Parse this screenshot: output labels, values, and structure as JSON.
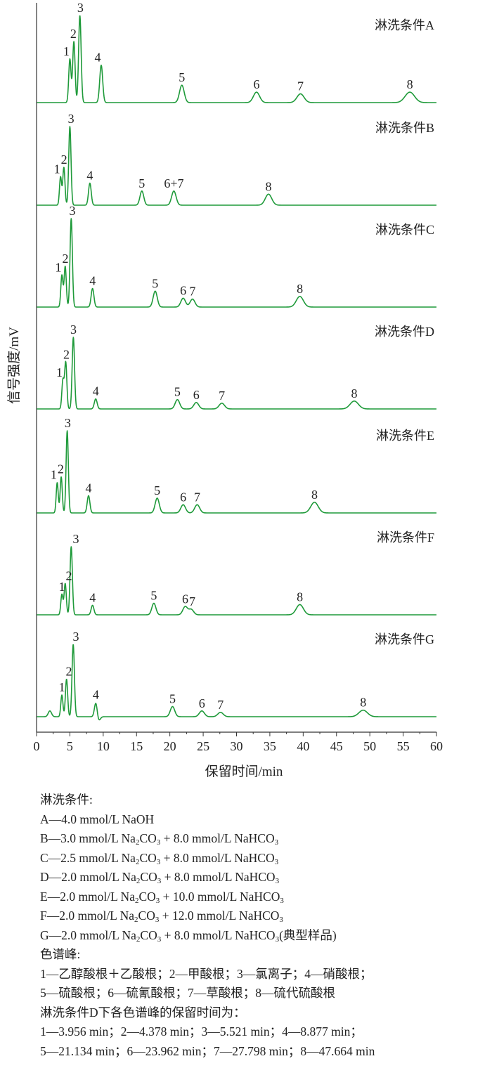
{
  "chart_data": {
    "type": "line",
    "xlabel": "保留时间/min",
    "ylabel": "信号强度/mV",
    "xlim": [
      0,
      60
    ],
    "xticks": [
      0,
      5,
      10,
      15,
      20,
      25,
      30,
      35,
      40,
      45,
      50,
      55,
      60
    ],
    "grid": false,
    "series": [
      {
        "name": "淋洗条件A",
        "peaks": [
          {
            "label": "1",
            "t": 5.0,
            "h": 0.5
          },
          {
            "label": "2",
            "t": 5.6,
            "h": 0.7
          },
          {
            "label": "3",
            "t": 6.5,
            "h": 1.0
          },
          {
            "label": "4",
            "t": 9.7,
            "h": 0.43
          },
          {
            "label": "5",
            "t": 21.8,
            "h": 0.2
          },
          {
            "label": "6",
            "t": 33.0,
            "h": 0.12
          },
          {
            "label": "7",
            "t": 39.6,
            "h": 0.1
          },
          {
            "label": "8",
            "t": 56.0,
            "h": 0.12
          }
        ]
      },
      {
        "name": "淋洗条件B",
        "peaks": [
          {
            "label": "1",
            "t": 3.6,
            "h": 0.36
          },
          {
            "label": "2",
            "t": 4.1,
            "h": 0.48
          },
          {
            "label": "3",
            "t": 5.0,
            "h": 1.0
          },
          {
            "label": "4",
            "t": 8.0,
            "h": 0.28
          },
          {
            "label": "5",
            "t": 15.8,
            "h": 0.18
          },
          {
            "label": "6+7",
            "t": 20.6,
            "h": 0.18
          },
          {
            "label": "8",
            "t": 34.8,
            "h": 0.14
          }
        ]
      },
      {
        "name": "淋洗条件C",
        "peaks": [
          {
            "label": "1",
            "t": 3.8,
            "h": 0.36
          },
          {
            "label": "2",
            "t": 4.3,
            "h": 0.46
          },
          {
            "label": "3",
            "t": 5.2,
            "h": 1.0
          },
          {
            "label": "4",
            "t": 8.4,
            "h": 0.21
          },
          {
            "label": "5",
            "t": 17.8,
            "h": 0.18
          },
          {
            "label": "6",
            "t": 22.0,
            "h": 0.1
          },
          {
            "label": "7",
            "t": 23.4,
            "h": 0.09
          },
          {
            "label": "8",
            "t": 39.5,
            "h": 0.12
          }
        ]
      },
      {
        "name": "淋洗条件D",
        "peaks": [
          {
            "label": "1",
            "t": 3.956,
            "h": 0.4
          },
          {
            "label": "2",
            "t": 4.378,
            "h": 0.65
          },
          {
            "label": "3",
            "t": 5.521,
            "h": 1.0
          },
          {
            "label": "4",
            "t": 8.877,
            "h": 0.14
          },
          {
            "label": "5",
            "t": 21.134,
            "h": 0.13
          },
          {
            "label": "6",
            "t": 23.962,
            "h": 0.09
          },
          {
            "label": "7",
            "t": 27.798,
            "h": 0.08
          },
          {
            "label": "8",
            "t": 47.664,
            "h": 0.11
          }
        ]
      },
      {
        "name": "淋洗条件E",
        "peaks": [
          {
            "label": "1",
            "t": 3.1,
            "h": 0.37
          },
          {
            "label": "2",
            "t": 3.7,
            "h": 0.44
          },
          {
            "label": "3",
            "t": 4.6,
            "h": 1.0
          },
          {
            "label": "4",
            "t": 7.8,
            "h": 0.21
          },
          {
            "label": "5",
            "t": 18.1,
            "h": 0.18
          },
          {
            "label": "6",
            "t": 22.0,
            "h": 0.1
          },
          {
            "label": "7",
            "t": 24.1,
            "h": 0.1
          },
          {
            "label": "8",
            "t": 41.7,
            "h": 0.13
          }
        ]
      },
      {
        "name": "淋洗条件F",
        "peaks": [
          {
            "label": "1",
            "t": 3.8,
            "h": 0.3
          },
          {
            "label": "2",
            "t": 4.3,
            "h": 0.46
          },
          {
            "label": "3",
            "t": 5.2,
            "h": 1.0
          },
          {
            "label": "4",
            "t": 8.4,
            "h": 0.14
          },
          {
            "label": "5",
            "t": 17.6,
            "h": 0.17
          },
          {
            "label": "6",
            "t": 22.3,
            "h": 0.12
          },
          {
            "label": "7",
            "t": 23.2,
            "h": 0.08
          },
          {
            "label": "8",
            "t": 39.5,
            "h": 0.15
          }
        ]
      },
      {
        "name": "淋洗条件G",
        "baseline_dip": [
          {
            "t": 2.0,
            "h": 0.08
          },
          {
            "t": 9.3,
            "h": -0.06
          }
        ],
        "peaks": [
          {
            "label": "1",
            "t": 3.8,
            "h": 0.3
          },
          {
            "label": "2",
            "t": 4.5,
            "h": 0.52
          },
          {
            "label": "3",
            "t": 5.5,
            "h": 1.0
          },
          {
            "label": "4",
            "t": 8.9,
            "h": 0.2
          },
          {
            "label": "5",
            "t": 20.4,
            "h": 0.14
          },
          {
            "label": "6",
            "t": 24.8,
            "h": 0.08
          },
          {
            "label": "7",
            "t": 27.6,
            "h": 0.06
          },
          {
            "label": "8",
            "t": 49.0,
            "h": 0.09
          }
        ]
      }
    ]
  },
  "legend": {
    "title": "淋洗条件:",
    "conditions": [
      {
        "id": "A",
        "text": "A—4.0 mmol/L NaOH"
      },
      {
        "id": "B",
        "text": "B—3.0 mmol/L Na₂CO₃ + 8.0 mmol/L NaHCO₃"
      },
      {
        "id": "C",
        "text": "C—2.5 mmol/L Na₂CO₃ + 8.0 mmol/L NaHCO₃"
      },
      {
        "id": "D",
        "text": "D—2.0 mmol/L Na₂CO₃ + 8.0 mmol/L NaHCO₃"
      },
      {
        "id": "E",
        "text": "E—2.0 mmol/L Na₂CO₃ + 10.0 mmol/L NaHCO₃"
      },
      {
        "id": "F",
        "text": "F—2.0 mmol/L Na₂CO₃ + 12.0 mmol/L NaHCO₃"
      },
      {
        "id": "G",
        "text": "G—2.0 mmol/L Na₂CO₃ + 8.0 mmol/L NaHCO₃(典型样品)"
      }
    ],
    "peaks_title": "色谱峰:",
    "peaks_line1": "1—乙醇酸根＋乙酸根；2—甲酸根；3—氯离子；4—硝酸根；",
    "peaks_line2": "5—硫酸根；6—硫氰酸根；7—草酸根；8—硫代硫酸根",
    "rt_title": "淋洗条件D下各色谱峰的保留时间为：",
    "rt_line1": "1—3.956 min；2—4.378 min；3—5.521 min；4—8.877 min；",
    "rt_line2": "5—21.134 min；6—23.962 min；7—27.798 min；8—47.664 min"
  },
  "colors": {
    "trace": "#1f9a3a",
    "text": "#222222"
  }
}
